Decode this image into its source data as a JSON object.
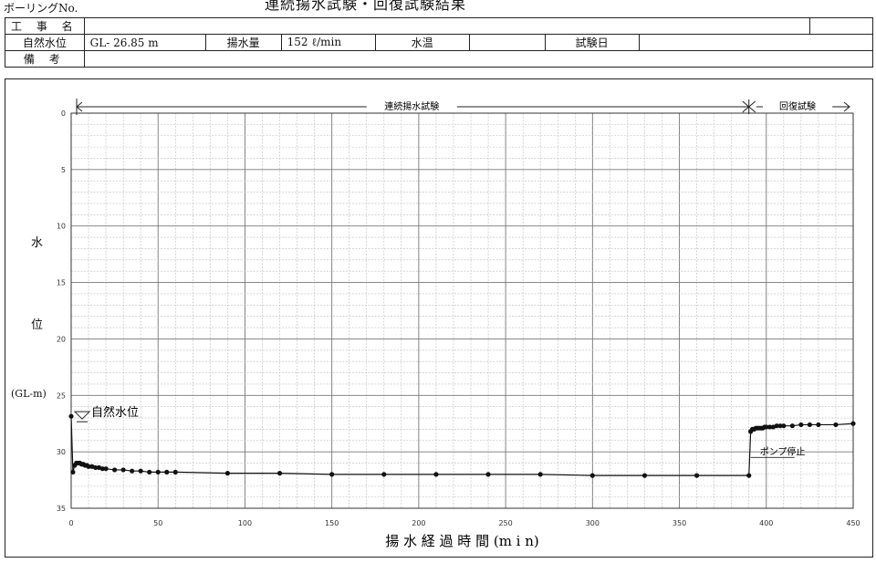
{
  "header": {
    "boring_no_label": "ボーリングNo.",
    "page_title": "連続揚水試験・回復試験結果",
    "row1_label": "工 事 名",
    "row1_value": "",
    "row2_label": "自然水位",
    "water_level": "GL-   26.85 m",
    "pump_rate_label": "揚水量",
    "pump_rate_value": "152 ℓ/min",
    "water_temp_label": "水温",
    "water_temp_value": "",
    "test_date_label": "試験日",
    "test_date_value": "",
    "row3_label": "備 考",
    "row3_value": ""
  },
  "chart_data": {
    "type": "line",
    "xlabel": "揚 水 経 過 時 間 (m i n)",
    "ylabel_chars": [
      "水",
      "位"
    ],
    "ylabel_unit": "(GL-m)",
    "xlim": [
      0,
      450
    ],
    "ylim": [
      0,
      35
    ],
    "y_inverted": true,
    "x_ticks": [
      0,
      50,
      100,
      150,
      200,
      250,
      300,
      350,
      400,
      450
    ],
    "y_ticks": [
      0,
      5,
      10,
      15,
      20,
      25,
      30,
      35
    ],
    "grid": true,
    "annotations": {
      "continuous_test": "連続揚水試験",
      "recovery_test": "回復試験",
      "natural_level": "自然水位",
      "pump_stop": "ポンプ停止"
    },
    "natural_level_value": 26.85,
    "pump_stop_time": 390,
    "series": [
      {
        "x": [
          0,
          1,
          2,
          3,
          4,
          5,
          6,
          7,
          8,
          9,
          10,
          12,
          14,
          16,
          18,
          20,
          25,
          30,
          35,
          40,
          45,
          50,
          55,
          60,
          90,
          120,
          150,
          180,
          210,
          240,
          270,
          300,
          330,
          360,
          390,
          391,
          392,
          393,
          394,
          395,
          396,
          397,
          398,
          399,
          400,
          402,
          404,
          406,
          408,
          410,
          415,
          420,
          425,
          430,
          440,
          450
        ],
        "y": [
          26.85,
          31.8,
          31.2,
          31.0,
          31.0,
          31.0,
          31.1,
          31.1,
          31.2,
          31.2,
          31.3,
          31.3,
          31.4,
          31.4,
          31.5,
          31.5,
          31.6,
          31.6,
          31.7,
          31.7,
          31.8,
          31.8,
          31.8,
          31.8,
          31.9,
          31.9,
          32.0,
          32.0,
          32.0,
          32.0,
          32.0,
          32.1,
          32.1,
          32.1,
          32.1,
          28.2,
          28.0,
          28.0,
          27.9,
          27.9,
          27.9,
          27.9,
          27.9,
          27.8,
          27.8,
          27.8,
          27.8,
          27.7,
          27.7,
          27.7,
          27.7,
          27.6,
          27.6,
          27.6,
          27.6,
          27.5
        ]
      }
    ]
  }
}
